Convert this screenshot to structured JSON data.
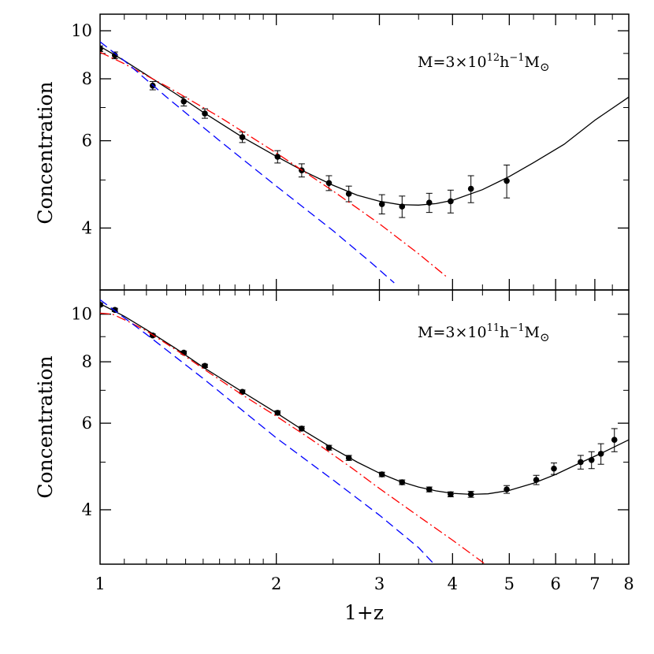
{
  "chart_data": [
    {
      "type": "line",
      "panel": "top",
      "label_parts": [
        "M=3×10",
        "12",
        "h",
        "−1",
        "M",
        "⊙"
      ],
      "ylabel": "Concentration",
      "xlabel": "1+z",
      "x_scale": "log",
      "y_scale": "log",
      "xlim": [
        1,
        8
      ],
      "ylim": [
        3.0,
        10.8
      ],
      "x_ticks_major": [
        1,
        2,
        3,
        4,
        5,
        6,
        7,
        8
      ],
      "y_ticks_major": [
        4,
        6,
        8,
        10
      ],
      "y_ticks_minor": [
        3,
        5,
        7,
        9
      ],
      "grid": false,
      "series": [
        {
          "kind": "points",
          "color": "#000000",
          "x": [
            1.0,
            1.06,
            1.23,
            1.39,
            1.51,
            1.75,
            2.01,
            2.21,
            2.46,
            2.66,
            3.03,
            3.28,
            3.65,
            3.97,
            4.3,
            4.95
          ],
          "y": [
            9.2,
            8.92,
            7.75,
            7.2,
            6.81,
            6.1,
            5.57,
            5.23,
            4.93,
            4.69,
            4.47,
            4.42,
            4.5,
            4.53,
            4.8,
            4.98
          ],
          "err": [
            0.12,
            0.14,
            0.15,
            0.15,
            0.15,
            0.15,
            0.16,
            0.16,
            0.17,
            0.17,
            0.2,
            0.22,
            0.2,
            0.24,
            0.3,
            0.38
          ]
        },
        {
          "kind": "fit",
          "color": "#000000",
          "x": [
            1.0,
            1.1,
            1.2,
            1.35,
            1.5,
            1.75,
            2.0,
            2.25,
            2.5,
            2.75,
            3.0,
            3.25,
            3.5,
            3.75,
            4.0,
            4.5,
            5.0,
            5.5,
            6.2,
            7.0,
            8.0
          ],
          "y": [
            9.3,
            8.7,
            8.15,
            7.45,
            6.85,
            6.1,
            5.58,
            5.18,
            4.88,
            4.66,
            4.53,
            4.46,
            4.45,
            4.48,
            4.55,
            4.78,
            5.08,
            5.42,
            5.9,
            6.6,
            7.35
          ]
        },
        {
          "kind": "model",
          "color": "#ff0000",
          "dash": "dash-dot",
          "x": [
            1.0,
            1.1,
            1.3,
            1.6,
            2.0,
            2.5,
            3.0,
            3.5,
            3.92
          ],
          "y": [
            9.05,
            8.58,
            7.72,
            6.7,
            5.67,
            4.75,
            4.08,
            3.55,
            3.18
          ]
        },
        {
          "kind": "model",
          "color": "#0000ff",
          "dash": "dashed",
          "x": [
            1.0,
            1.1,
            1.3,
            1.6,
            2.0,
            2.5,
            2.9,
            3.18
          ],
          "y": [
            9.5,
            8.7,
            7.34,
            6.0,
            4.86,
            3.95,
            3.41,
            3.1
          ]
        }
      ]
    },
    {
      "type": "line",
      "panel": "bottom",
      "label_parts": [
        "M=3×10",
        "11",
        "h",
        "−1",
        "M",
        "⊙"
      ],
      "ylabel": "Concentration",
      "xlabel": "1+z",
      "x_scale": "log",
      "y_scale": "log",
      "xlim": [
        1,
        8
      ],
      "ylim": [
        3.1,
        11.2
      ],
      "x_ticks_major": [
        1,
        2,
        3,
        4,
        5,
        6,
        7,
        8
      ],
      "y_ticks_major": [
        4,
        6,
        8,
        10
      ],
      "y_ticks_minor": [
        5,
        7,
        9
      ],
      "grid": false,
      "series": [
        {
          "kind": "points",
          "color": "#000000",
          "x": [
            1.0,
            1.06,
            1.23,
            1.39,
            1.51,
            1.75,
            2.01,
            2.21,
            2.46,
            2.66,
            3.03,
            3.28,
            3.65,
            3.97,
            4.3,
            4.95,
            5.56,
            5.96,
            6.62,
            6.91,
            7.17,
            7.56
          ],
          "y": [
            10.45,
            10.2,
            9.05,
            8.35,
            7.85,
            6.95,
            6.3,
            5.85,
            5.35,
            5.1,
            4.72,
            4.55,
            4.4,
            4.3,
            4.3,
            4.4,
            4.6,
            4.85,
            5.0,
            5.05,
            5.2,
            5.55
          ],
          "err": [
            0.08,
            0.08,
            0.06,
            0.06,
            0.06,
            0.06,
            0.06,
            0.06,
            0.06,
            0.06,
            0.05,
            0.05,
            0.05,
            0.05,
            0.06,
            0.08,
            0.1,
            0.13,
            0.16,
            0.2,
            0.25,
            0.3
          ]
        },
        {
          "kind": "fit",
          "color": "#000000",
          "x": [
            1.0,
            1.1,
            1.2,
            1.35,
            1.5,
            1.75,
            2.0,
            2.25,
            2.5,
            2.75,
            3.0,
            3.25,
            3.5,
            3.75,
            4.0,
            4.3,
            4.6,
            5.0,
            5.5,
            6.0,
            6.6,
            7.2,
            8.0
          ],
          "y": [
            10.5,
            9.9,
            9.3,
            8.5,
            7.8,
            6.95,
            6.3,
            5.75,
            5.33,
            5.0,
            4.75,
            4.57,
            4.45,
            4.37,
            4.32,
            4.3,
            4.31,
            4.38,
            4.53,
            4.72,
            4.98,
            5.22,
            5.55
          ]
        },
        {
          "kind": "model",
          "color": "#ff0000",
          "dash": "dash-dot",
          "x": [
            1.0,
            1.05,
            1.12,
            1.2,
            1.35,
            1.5,
            1.75,
            2.0,
            2.3,
            2.7,
            3.0,
            3.5,
            4.0,
            4.55
          ],
          "y": [
            10.05,
            10.0,
            9.65,
            9.25,
            8.45,
            7.75,
            6.85,
            6.2,
            5.55,
            4.85,
            4.42,
            3.88,
            3.47,
            3.1
          ]
        },
        {
          "kind": "model",
          "color": "#0000ff",
          "dash": "dashed",
          "x": [
            1.0,
            1.2,
            1.5,
            2.0,
            2.5,
            3.0,
            3.5,
            3.72
          ],
          "y": [
            10.7,
            9.1,
            7.4,
            5.6,
            4.6,
            3.9,
            3.35,
            3.1
          ]
        }
      ]
    }
  ]
}
